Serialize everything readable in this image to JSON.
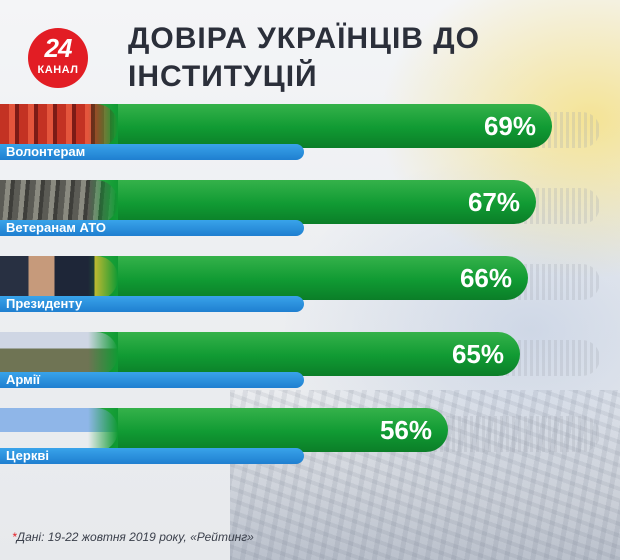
{
  "logo": {
    "number": "24",
    "word": "КАНАЛ"
  },
  "title": "ДОВІРА УКРАЇНЦІВ ДО ІНСТИТУЦІЙ",
  "chart_data": {
    "type": "bar",
    "orientation": "horizontal",
    "title": "ДОВІРА УКРАЇНЦІВ ДО ІНСТИТУЦІЙ",
    "categories": [
      "Волонтерам",
      "Ветеранам АТО",
      "Президенту",
      "Армії",
      "Церкві"
    ],
    "values": [
      69,
      67,
      66,
      65,
      56
    ],
    "value_labels": [
      "69%",
      "67%",
      "66%",
      "65%",
      "56%"
    ],
    "unit": "%",
    "xlim": [
      0,
      100
    ],
    "grid": false,
    "legend": "none",
    "bar_color": "#109a33",
    "label_color": "#1f7fd0"
  },
  "footnote": {
    "star": "*",
    "text": "Дані: 19-22 жовтня 2019 року, «Рейтинг»"
  },
  "colors": {
    "accent": "#e21d24",
    "bar": "#109a33",
    "label": "#1f7fd0",
    "title": "#2b2f3a"
  },
  "icons": [
    "24-kanal-logo"
  ]
}
